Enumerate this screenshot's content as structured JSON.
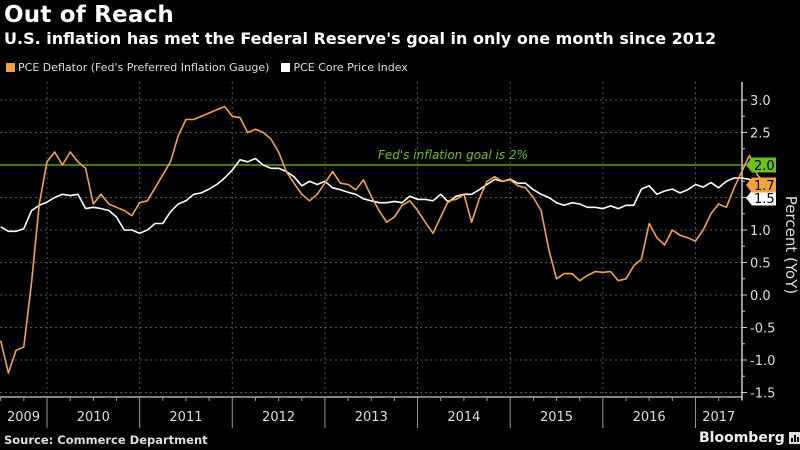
{
  "header": {
    "title": "Out of Reach",
    "subtitle": "U.S. inflation has met the Federal Reserve's goal in only one month since 2012"
  },
  "footer": {
    "source": "Source: Commerce Department",
    "brand": "Bloomberg"
  },
  "colors": {
    "background": "#000000",
    "pce_deflator": "#f5a341",
    "pce_core": "#ffffff",
    "goal_line": "#6fbf1a",
    "grid": "#555555",
    "axis": "#cccccc"
  },
  "chart_data": {
    "type": "line",
    "title": "Out of Reach",
    "subtitle": "U.S. inflation has met the Federal Reserve's goal in only one month since 2012",
    "xlabel": "",
    "ylabel": "Percent (YoY)",
    "ylim": [
      -1.6,
      3.2
    ],
    "yticks": [
      3.0,
      2.5,
      2.0,
      1.5,
      1.0,
      0.5,
      0.0,
      -0.5,
      -1.0,
      -1.5
    ],
    "ytick_labels": [
      "3.0",
      "2.5",
      "2.0",
      "1.5",
      "1.0",
      "0.5",
      "0.0",
      "-0.5",
      "-1.0",
      "-1.5"
    ],
    "x_start": "2009-07",
    "x_end": "2017-03",
    "xtick_labels": [
      "2009",
      "2010",
      "2011",
      "2012",
      "2013",
      "2014",
      "2015",
      "2016",
      "2017"
    ],
    "grid": true,
    "legend_position": "top-left",
    "annotation": {
      "text": "Fed's inflation goal is 2%",
      "y": 2.0
    },
    "end_labels": [
      {
        "series": "Fed goal",
        "value": "2.0"
      },
      {
        "series": "PCE Deflator",
        "value": "1.7"
      },
      {
        "series": "PCE Core",
        "value": "1.5"
      }
    ],
    "series": [
      {
        "name": "PCE Deflator (Fed's Preferred Inflation Gauge)",
        "color": "#f5a341",
        "values": [
          -0.7,
          -1.2,
          -0.85,
          -0.8,
          0.2,
          1.4,
          2.05,
          2.2,
          2.0,
          2.2,
          2.05,
          1.95,
          1.4,
          1.55,
          1.4,
          1.35,
          1.3,
          1.22,
          1.42,
          1.45,
          1.65,
          1.85,
          2.05,
          2.45,
          2.7,
          2.7,
          2.75,
          2.8,
          2.85,
          2.9,
          2.75,
          2.73,
          2.5,
          2.55,
          2.5,
          2.4,
          2.2,
          1.9,
          1.72,
          1.55,
          1.45,
          1.55,
          1.72,
          1.9,
          1.72,
          1.7,
          1.62,
          1.77,
          1.52,
          1.3,
          1.12,
          1.2,
          1.38,
          1.45,
          1.3,
          1.12,
          0.95,
          1.2,
          1.45,
          1.47,
          1.55,
          1.12,
          1.48,
          1.75,
          1.82,
          1.75,
          1.77,
          1.68,
          1.65,
          1.5,
          1.3,
          0.7,
          0.25,
          0.33,
          0.33,
          0.22,
          0.3,
          0.36,
          0.35,
          0.36,
          0.22,
          0.25,
          0.45,
          0.55,
          1.1,
          0.88,
          0.77,
          1.0,
          0.92,
          0.88,
          0.83,
          1.0,
          1.25,
          1.4,
          1.35,
          1.65,
          1.9,
          2.15,
          1.85,
          1.72
        ]
      },
      {
        "name": "PCE Core Price Index",
        "color": "#ffffff",
        "values": [
          1.05,
          0.98,
          0.98,
          1.02,
          1.3,
          1.38,
          1.43,
          1.5,
          1.55,
          1.53,
          1.55,
          1.33,
          1.35,
          1.33,
          1.3,
          1.2,
          1.0,
          1.0,
          0.95,
          1.0,
          1.1,
          1.1,
          1.28,
          1.4,
          1.45,
          1.55,
          1.57,
          1.63,
          1.7,
          1.8,
          1.92,
          2.08,
          2.05,
          2.1,
          2.0,
          1.95,
          1.95,
          1.9,
          1.82,
          1.68,
          1.75,
          1.7,
          1.75,
          1.65,
          1.62,
          1.58,
          1.55,
          1.48,
          1.45,
          1.42,
          1.42,
          1.44,
          1.42,
          1.52,
          1.47,
          1.47,
          1.45,
          1.55,
          1.43,
          1.52,
          1.55,
          1.55,
          1.62,
          1.7,
          1.78,
          1.75,
          1.78,
          1.72,
          1.72,
          1.62,
          1.55,
          1.5,
          1.42,
          1.38,
          1.42,
          1.4,
          1.35,
          1.35,
          1.33,
          1.37,
          1.33,
          1.38,
          1.38,
          1.63,
          1.68,
          1.55,
          1.6,
          1.63,
          1.57,
          1.62,
          1.7,
          1.66,
          1.73,
          1.65,
          1.75,
          1.8,
          1.8,
          1.78,
          1.58,
          1.52
        ]
      },
      {
        "name": "Fed's inflation goal",
        "color": "#6fbf1a",
        "values": [
          2.0
        ]
      }
    ]
  }
}
